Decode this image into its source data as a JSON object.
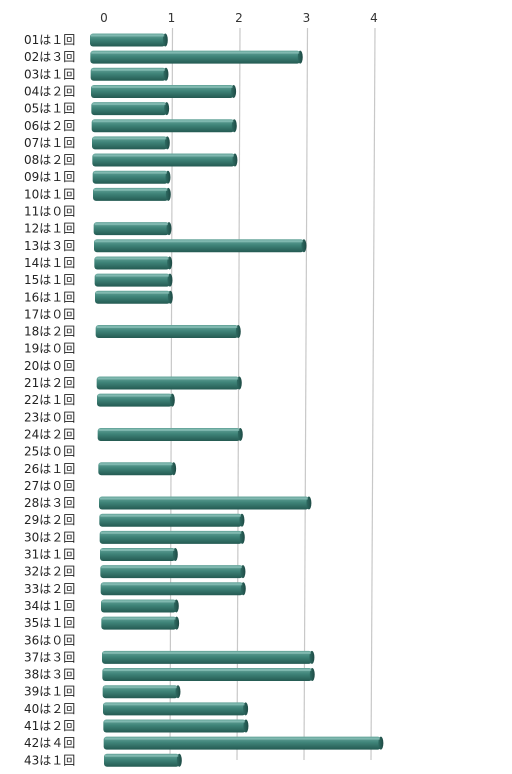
{
  "chart_data": {
    "type": "bar",
    "orientation": "horizontal",
    "style": "3d",
    "title": "",
    "xlabel": "",
    "ylabel": "",
    "xlim": [
      0,
      4
    ],
    "x_ticks": [
      "0",
      "1",
      "2",
      "3",
      "4"
    ],
    "grid": true,
    "bar_color": "#3a7d74",
    "categories": [
      "01は１回",
      "02は３回",
      "03は１回",
      "04は２回",
      "05は１回",
      "06は２回",
      "07は１回",
      "08は２回",
      "09は１回",
      "10は１回",
      "11は０回",
      "12は１回",
      "13は３回",
      "14は１回",
      "15は１回",
      "16は１回",
      "17は０回",
      "18は２回",
      "19は０回",
      "20は０回",
      "21は２回",
      "22は１回",
      "23は０回",
      "24は２回",
      "25は０回",
      "26は１回",
      "27は０回",
      "28は３回",
      "29は２回",
      "30は２回",
      "31は１回",
      "32は２回",
      "33は２回",
      "34は１回",
      "35は１回",
      "36は０回",
      "37は３回",
      "38は３回",
      "39は１回",
      "40は２回",
      "41は２回",
      "42は４回",
      "43は１回"
    ],
    "values": [
      1,
      3,
      1,
      2,
      1,
      2,
      1,
      2,
      1,
      1,
      0,
      1,
      3,
      1,
      1,
      1,
      0,
      2,
      0,
      0,
      2,
      1,
      0,
      2,
      0,
      1,
      0,
      3,
      2,
      2,
      1,
      2,
      2,
      1,
      1,
      0,
      3,
      3,
      1,
      2,
      2,
      4,
      1
    ]
  }
}
